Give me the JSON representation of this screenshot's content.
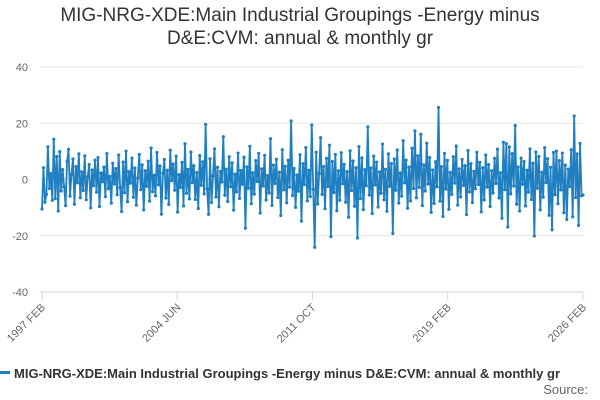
{
  "title_line1": "MIG-NRG-XDE:Main Industrial Groupings -Energy minus",
  "title_line2": "D&E:CVM: annual & monthly gr",
  "legend_label": "MIG-NRG-XDE:Main Industrial Groupings -Energy minus D&E:CVM: annual & monthly gr",
  "source_label": "Source:",
  "colors": {
    "series": "#1f7fc0",
    "grid": "#e6e6e6",
    "text": "#333333"
  },
  "chart_data": {
    "type": "line",
    "title": "MIG-NRG-XDE:Main Industrial Groupings -Energy minus D&E:CVM: annual & monthly gr",
    "xlabel": "",
    "ylabel": "",
    "ylim": [
      -40,
      40
    ],
    "yticks": [
      40,
      20,
      0,
      -20,
      -40
    ],
    "xlim": [
      "1997 FEB",
      "2026 FEB"
    ],
    "xticks": [
      "1997 FEB",
      "2004 JUN",
      "2011 OCT",
      "2019 FEB",
      "2026 FEB"
    ],
    "grid": "horizontal",
    "legend": "bottom",
    "series": [
      {
        "name": "MIG-NRG-XDE:Main Industrial Groupings -Energy minus D&E:CVM: annual & monthly gr",
        "start": "1997 FEB",
        "frequency": "monthly",
        "values": [
          -10.5,
          4.2,
          -8.1,
          -5.3,
          11.6,
          -3.2,
          2.1,
          -7.4,
          14.3,
          -6.8,
          8.2,
          -11.2,
          9.9,
          -4.1,
          3.5,
          -2.6,
          -9.3,
          6.4,
          10.7,
          -5.9,
          1.8,
          7.3,
          -8.8,
          4.6,
          -1.2,
          9.1,
          -6.5,
          2.7,
          -3.9,
          8.4,
          -7.2,
          0.9,
          5.3,
          -10.1,
          3.4,
          -2.2,
          6.9,
          -4.5,
          7.8,
          -9.6,
          2.3,
          -0.8,
          4.4,
          -6.1,
          9.2,
          -3.3,
          1.1,
          -8.4,
          5.8,
          -1.6,
          3.9,
          -5.4,
          8.7,
          -2.9,
          -11.4,
          6.2,
          -4.7,
          10.1,
          -7.9,
          2.8,
          -1.3,
          7.6,
          -6.3,
          4.1,
          -9.1,
          0.6,
          8.9,
          -3.6,
          5.2,
          -10.8,
          3.1,
          -2.4,
          6.5,
          -7.7,
          11.2,
          -4.3,
          1.5,
          -5.8,
          9.6,
          -1.9,
          4.8,
          -12.3,
          2.2,
          7.1,
          -6.6,
          3.3,
          -8.9,
          10.4,
          -0.4,
          5.5,
          -3.8,
          8.3,
          -11.6,
          1.7,
          -2.8,
          6.1,
          -9.4,
          12.7,
          -4.9,
          3.6,
          -6.9,
          9.8,
          -1.1,
          4.9,
          -7.1,
          2.5,
          -10.3,
          8.5,
          -2.1,
          6.3,
          -5.1,
          19.6,
          -3.4,
          -12.4,
          7.4,
          -8.2,
          1.3,
          10.9,
          -6.2,
          4.3,
          -9.7,
          2.9,
          -0.9,
          15.2,
          -5.6,
          3.7,
          -7.8,
          8.1,
          -2.6,
          5.9,
          -10.9,
          1.9,
          -4.4,
          9.4,
          -6.7,
          3.2,
          -1.7,
          7.9,
          -17.3,
          4.5,
          -3.1,
          11.8,
          -8.6,
          2.4,
          -5.2,
          6.7,
          -0.7,
          9.3,
          -11.9,
          3.8,
          -2.3,
          8.6,
          -7.3,
          1.4,
          -4.8,
          14.5,
          -9.2,
          5.1,
          -1.4,
          7.2,
          -6.4,
          2.6,
          -12.8,
          10.6,
          -3.7,
          4.7,
          -8.3,
          6.8,
          -2.7,
          20.8,
          -5.7,
          3.9,
          -9.9,
          1.6,
          -4.2,
          8.8,
          -14.8,
          5.6,
          -1.8,
          11.4,
          -7.6,
          3.3,
          -6.1,
          19.4,
          -3.5,
          -24.1,
          9.7,
          -8.7,
          2.1,
          14.9,
          -5.3,
          4.6,
          -10.4,
          7.5,
          -2.5,
          12.2,
          -20.3,
          6.4,
          -4.6,
          8.9,
          -11.1,
          3.1,
          -7.4,
          9.5,
          -1.5,
          5.4,
          -8.1,
          2.8,
          -13.4,
          10.2,
          -3.9,
          6.6,
          -9.5,
          4.2,
          -20.8,
          11.7,
          -6.8,
          7.7,
          -10.7,
          3.5,
          -2.2,
          18.7,
          -5.5,
          4.1,
          -12.1,
          8.3,
          -1.9,
          6.2,
          -9.8,
          2.7,
          -4.9,
          12.6,
          -7.2,
          3.6,
          -11.3,
          9.1,
          -2.4,
          5.7,
          -19.2,
          7.3,
          -3.8,
          10.5,
          -8.4,
          2.3,
          -5.9,
          13.8,
          -1.2,
          6.9,
          -10.2,
          4.4,
          -7.6,
          11.1,
          -3.2,
          17.3,
          -6.5,
          8.4,
          -2.8,
          16.1,
          -9.3,
          5.2,
          -4.1,
          12.9,
          -1.6,
          7.8,
          -11.7,
          3.4,
          -8.5,
          6.3,
          -2.6,
          25.6,
          -7.7,
          4.6,
          -13.1,
          9.3,
          -3.4,
          6.8,
          -10.6,
          2.5,
          -5.3,
          8.1,
          -1.3,
          11.9,
          -9.1,
          3.8,
          -6.2,
          7.1,
          -2.1,
          4.9,
          -12.5,
          10.3,
          -4.4,
          5.6,
          -8.2,
          2.9,
          -3.3,
          9.7,
          -1.8,
          6.1,
          -11.5,
          4.2,
          -7.3,
          8.7,
          -2.7,
          5.3,
          -9.6,
          3.1,
          -4.8,
          7.5,
          -1.4,
          10.8,
          -6.6,
          2.4,
          -13.8,
          13.2,
          -3.6,
          12.7,
          -16.9,
          11.6,
          -5.1,
          9.2,
          -2.3,
          19.2,
          -8.8,
          4.5,
          -11.2,
          7.6,
          -1.7,
          6.4,
          -9.4,
          3.3,
          -4.5,
          10.9,
          -7.1,
          5.8,
          -20.1,
          9.8,
          -3.1,
          8.2,
          -10.8,
          2.6,
          -6.3,
          11.3,
          -1.1,
          7.4,
          -12.7,
          4.3,
          -17.9,
          9.6,
          -5.4,
          10.1,
          -8.6,
          6.7,
          -3.7,
          9.4,
          -11.8,
          5.1,
          -14.2,
          3.7,
          -2.5,
          10.6,
          -13.3,
          22.6,
          -6.4,
          9.1,
          -16.3,
          12.8,
          -5.8,
          -5.5
        ]
      }
    ]
  }
}
